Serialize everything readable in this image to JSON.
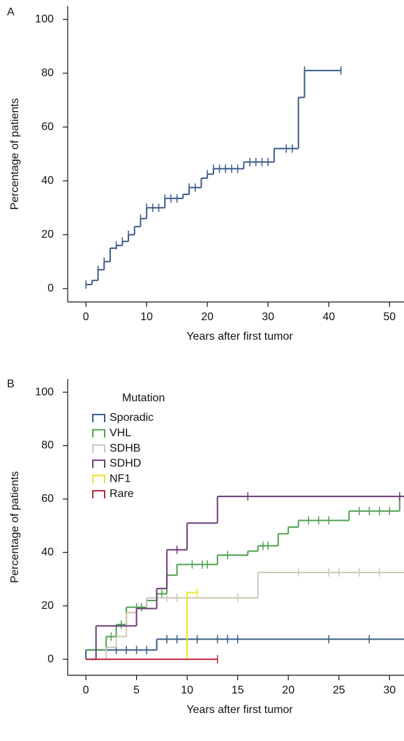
{
  "chart_data": [
    {
      "type": "step",
      "panel_label": "A",
      "xlabel": "Years after first tumor",
      "ylabel": "Percentage of patients",
      "xlim": [
        -3,
        52.5
      ],
      "ylim": [
        -5,
        105
      ],
      "xticks": [
        0,
        10,
        20,
        30,
        40,
        50
      ],
      "yticks": [
        0,
        20,
        40,
        60,
        80,
        100
      ],
      "series": [
        {
          "color": "#3b5b8a",
          "x": [
            0,
            1,
            2,
            3,
            4,
            5,
            6,
            7,
            8,
            9,
            10,
            13,
            16,
            17,
            19,
            20,
            21,
            26,
            31,
            35,
            36,
            42
          ],
          "values": [
            1.5,
            3,
            7,
            10,
            15,
            16,
            17.5,
            20,
            23,
            26,
            30,
            33.5,
            35,
            37.5,
            41,
            42.5,
            44.5,
            47,
            52,
            71,
            81,
            81
          ],
          "censored": [
            0,
            2,
            3,
            5,
            6,
            7,
            9,
            10,
            11,
            12,
            13,
            14,
            15,
            17,
            18,
            20,
            21,
            22,
            23,
            24,
            25,
            27,
            28,
            29,
            30,
            33,
            34,
            36,
            42
          ]
        }
      ]
    },
    {
      "type": "step",
      "panel_label": "B",
      "xlabel": "Years after first tumor",
      "ylabel": "Percentage of patients",
      "xlim": [
        -1.8,
        31.5
      ],
      "ylim": [
        -6,
        105
      ],
      "xticks": [
        0,
        5,
        10,
        15,
        20,
        25,
        30
      ],
      "yticks": [
        0,
        20,
        40,
        60,
        80,
        100
      ],
      "legend": "upper left",
      "legend_title": "Mutation",
      "series": [
        {
          "name": "Sporadic",
          "color": "#3b5b8a",
          "x": [
            0,
            0,
            7,
            31.5
          ],
          "values": [
            0,
            3.5,
            7.5,
            7.5
          ],
          "censored": [
            3,
            4,
            5,
            6,
            8,
            9,
            10,
            11,
            13,
            14,
            15,
            24,
            28
          ]
        },
        {
          "name": "VHL",
          "color": "#4fa14f",
          "x": [
            0,
            2,
            3,
            4,
            6,
            7,
            8,
            9,
            13,
            16,
            17,
            19,
            20,
            21,
            26,
            31,
            31.5
          ],
          "values": [
            3.5,
            8.5,
            13,
            19.5,
            22,
            24.5,
            31.5,
            35.5,
            39,
            40.5,
            42.5,
            47,
            49.5,
            52,
            55.5,
            61,
            61
          ],
          "censored": [
            2.5,
            3.5,
            5,
            5.5,
            7.5,
            10.5,
            11.5,
            12,
            14,
            17.5,
            18,
            22,
            23,
            24,
            27,
            28,
            29,
            30,
            31
          ]
        },
        {
          "name": "SDHB",
          "color": "#cdc6b6",
          "x": [
            0,
            2,
            3,
            4,
            5,
            6,
            17,
            31.5
          ],
          "values": [
            0,
            4.5,
            8.5,
            17.5,
            19,
            23,
            32.5,
            32.5
          ],
          "censored": [
            8,
            9,
            15,
            21,
            24,
            25,
            27,
            29
          ]
        },
        {
          "name": "SDHD",
          "color": "#6b3a78",
          "x": [
            0,
            1,
            5,
            7,
            8,
            10,
            13,
            31.5
          ],
          "values": [
            0,
            12.5,
            19,
            26.5,
            41,
            51,
            61,
            61
          ],
          "censored": [
            9,
            16,
            31
          ]
        },
        {
          "name": "NF1",
          "color": "#ece21e",
          "x": [
            10,
            10,
            11
          ],
          "values": [
            0,
            25,
            25
          ],
          "censored": [
            11
          ]
        },
        {
          "name": "Rare",
          "color": "#c0283a",
          "x": [
            0,
            13
          ],
          "values": [
            0,
            0
          ],
          "censored": [
            13
          ]
        }
      ]
    }
  ]
}
